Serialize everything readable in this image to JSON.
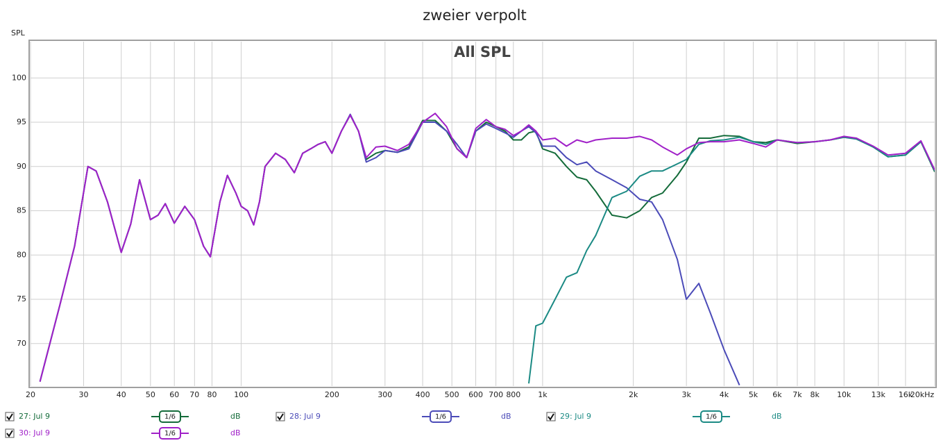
{
  "chart_data": {
    "type": "line",
    "title": "zweier verpolt",
    "plot_title": "All SPL",
    "y_label": "SPL",
    "xscale": "log",
    "grid": true,
    "xlim": [
      20,
      20000
    ],
    "ylim": [
      65.2,
      104.1
    ],
    "xticks": [
      20,
      30,
      40,
      50,
      60,
      70,
      80,
      100,
      200,
      300,
      400,
      500,
      600,
      700,
      800,
      {
        "value": 1000,
        "label": "1k"
      },
      {
        "value": 2000,
        "label": "2k"
      },
      {
        "value": 3000,
        "label": "3k"
      },
      {
        "value": 4000,
        "label": "4k"
      },
      {
        "value": 5000,
        "label": "5k"
      },
      {
        "value": 6000,
        "label": "6k"
      },
      {
        "value": 7000,
        "label": "7k"
      },
      {
        "value": 8000,
        "label": "8k"
      },
      {
        "value": 10000,
        "label": "10k"
      },
      {
        "value": 13000,
        "label": "13k"
      },
      {
        "value": 16000,
        "label": "16k"
      },
      {
        "value": 20000,
        "label": "20kHz"
      }
    ],
    "yticks": [
      70,
      75,
      80,
      85,
      90,
      95,
      100
    ],
    "x": [
      21.5,
      25,
      28,
      31,
      33,
      36,
      40,
      43,
      46,
      50,
      53,
      56,
      60,
      65,
      70,
      75,
      79,
      85,
      90,
      96,
      100,
      105,
      110,
      115,
      120,
      130,
      140,
      150,
      160,
      170,
      180,
      190,
      200,
      215,
      230,
      245,
      260,
      280,
      300,
      330,
      360,
      400,
      440,
      480,
      520,
      560,
      600,
      650,
      700,
      750,
      800,
      850,
      900,
      950,
      1000,
      1100,
      1200,
      1300,
      1400,
      1500,
      1700,
      1900,
      2100,
      2300,
      2500,
      2800,
      3000,
      3300,
      3600,
      4000,
      4500,
      5000,
      5500,
      6000,
      7000,
      8000,
      9000,
      10000,
      11000,
      12500,
      14000,
      16000,
      18000,
      20000
    ],
    "series": [
      {
        "name": "27: Jul 9",
        "color": "#146b3a",
        "visible": true,
        "smoothing": "1/6",
        "unit": "dB",
        "values": [
          65.7,
          74.3,
          81,
          90,
          89.5,
          86,
          80.3,
          83.5,
          88.5,
          84,
          84.5,
          85.8,
          83.6,
          85.5,
          84,
          81,
          79.8,
          86,
          89,
          87,
          85.5,
          85,
          83.4,
          86,
          90,
          91.5,
          90.8,
          89.3,
          91.5,
          92,
          92.5,
          92.8,
          91.5,
          94,
          95.8,
          94,
          90.8,
          91.5,
          91.8,
          91.6,
          92.2,
          95.2,
          95.2,
          94,
          92,
          91,
          94,
          95,
          94.5,
          94,
          93,
          93,
          93.8,
          94,
          92,
          91.5,
          90,
          88.8,
          88.5,
          87.2,
          84.5,
          84.2,
          85,
          86.5,
          87,
          89,
          90.5,
          93.2,
          93.2,
          93.5,
          93.4,
          92.8,
          92.7,
          93,
          92.6,
          92.8,
          93,
          93.3,
          93.2,
          92.2,
          91.1,
          91.3,
          92.8,
          89.4
        ]
      },
      {
        "name": "28: Jul 9",
        "color": "#4b4bb8",
        "visible": true,
        "smoothing": "1/6",
        "unit": "dB",
        "values": [
          65.7,
          74.3,
          81,
          90,
          89.5,
          86,
          80.3,
          83.5,
          88.5,
          84,
          84.5,
          85.8,
          83.6,
          85.5,
          84,
          81,
          79.8,
          86,
          89,
          87,
          85.5,
          85,
          83.4,
          86,
          90,
          91.5,
          90.8,
          89.3,
          91.5,
          92,
          92.5,
          92.8,
          91.5,
          94,
          95.9,
          94,
          90.5,
          91,
          91.8,
          91.6,
          92,
          95,
          95,
          94,
          92.5,
          91,
          94,
          94.8,
          94.3,
          93.8,
          93.3,
          94,
          94.5,
          93.8,
          92.3,
          92.3,
          91,
          90.2,
          90.5,
          89.5,
          88.5,
          87.6,
          86.3,
          86,
          84,
          79.5,
          75,
          76.8,
          73.5,
          69.3,
          65.3,
          null,
          null,
          null,
          null,
          null,
          null,
          null,
          null,
          null,
          null,
          null,
          null,
          null
        ]
      },
      {
        "name": "29: Jul 9",
        "color": "#1b8a84",
        "visible": true,
        "smoothing": "1/6",
        "unit": "dB",
        "values": [
          null,
          null,
          null,
          null,
          null,
          null,
          null,
          null,
          null,
          null,
          null,
          null,
          null,
          null,
          null,
          null,
          null,
          null,
          null,
          null,
          null,
          null,
          null,
          null,
          null,
          null,
          null,
          null,
          null,
          null,
          null,
          null,
          null,
          null,
          null,
          null,
          null,
          null,
          null,
          null,
          null,
          null,
          null,
          null,
          null,
          null,
          null,
          null,
          null,
          null,
          null,
          null,
          65.5,
          72,
          72.3,
          75,
          77.5,
          78,
          80.5,
          82.2,
          86.5,
          87.2,
          88.9,
          89.5,
          89.5,
          90.3,
          90.8,
          92.5,
          92.9,
          93,
          93.3,
          92.8,
          92.5,
          93,
          92.7,
          92.8,
          93,
          93.3,
          93.1,
          92.2,
          91.1,
          91.3,
          92.8,
          89.5
        ]
      },
      {
        "name": "30: Jul 9",
        "color": "#a020c8",
        "visible": true,
        "smoothing": "1/6",
        "unit": "dB",
        "values": [
          65.7,
          74.3,
          81,
          90,
          89.5,
          86,
          80.3,
          83.5,
          88.5,
          84,
          84.5,
          85.8,
          83.6,
          85.5,
          84,
          81,
          79.8,
          86,
          89,
          87,
          85.5,
          85,
          83.4,
          86,
          90,
          91.5,
          90.8,
          89.3,
          91.5,
          92,
          92.5,
          92.8,
          91.5,
          94,
          95.8,
          94,
          91,
          92.2,
          92.3,
          91.8,
          92.5,
          95,
          96,
          94.5,
          92,
          91,
          94.3,
          95.3,
          94.5,
          94.2,
          93.5,
          94,
          94.7,
          94,
          93,
          93.2,
          92.3,
          93,
          92.7,
          93,
          93.2,
          93.2,
          93.4,
          93,
          92.2,
          91.3,
          92,
          92.7,
          92.8,
          92.8,
          93,
          92.6,
          92.2,
          93,
          92.7,
          92.8,
          93,
          93.4,
          93.2,
          92.3,
          91.3,
          91.5,
          92.9,
          89.6
        ]
      }
    ]
  }
}
